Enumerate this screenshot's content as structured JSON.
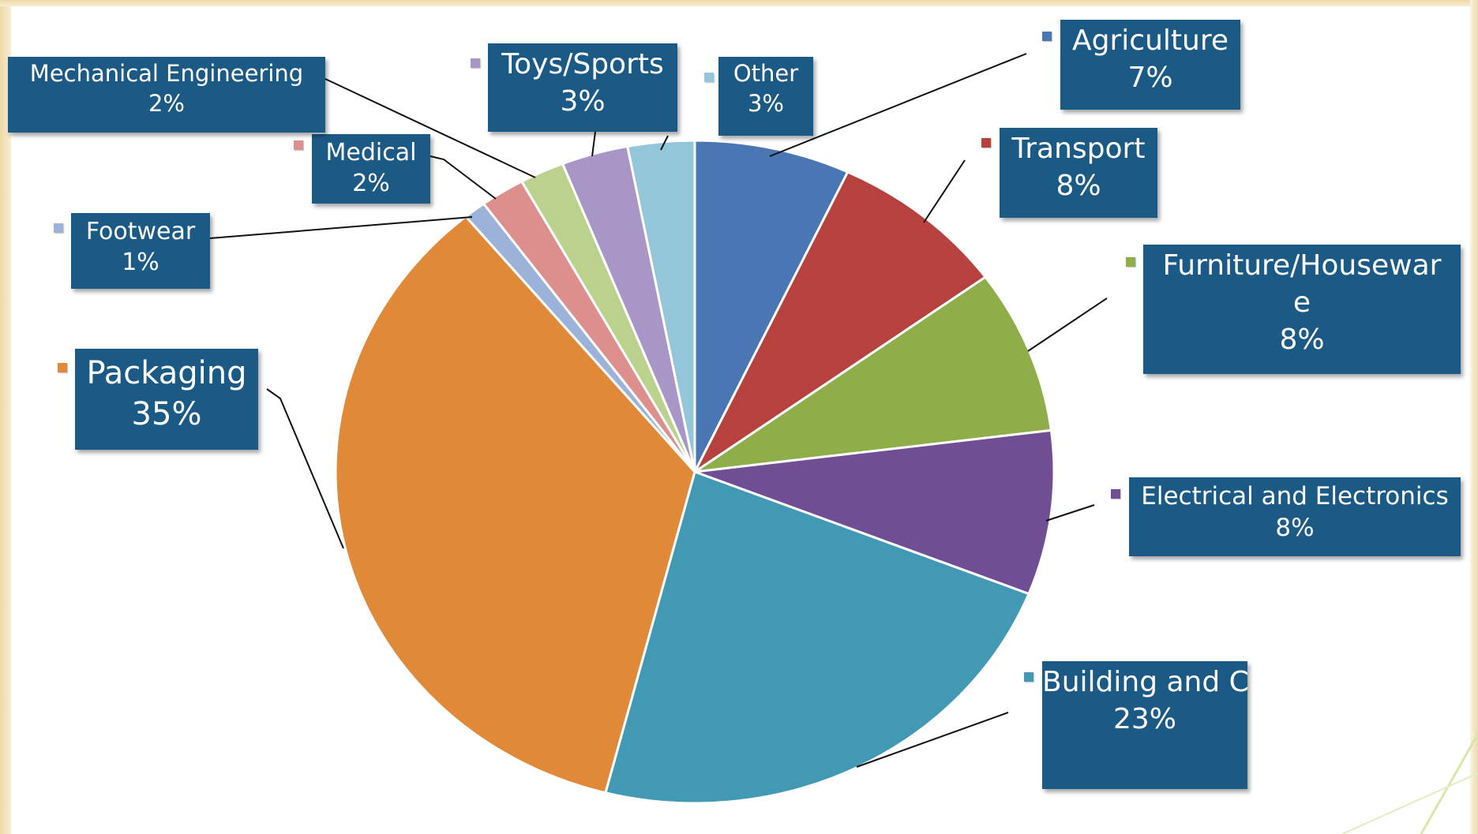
{
  "chart_data": {
    "type": "pie",
    "title": "",
    "legend": "none",
    "slices": [
      {
        "label": "Agriculture",
        "value": 7,
        "display": "7%",
        "color": "#4a76b3"
      },
      {
        "label": "Transport",
        "value": 8,
        "display": "8%",
        "color": "#b7413f"
      },
      {
        "label": "Furniture/Housewar\ne",
        "value": 8,
        "display": "8%",
        "color": "#8fae4a"
      },
      {
        "label": "Electrical and Electronics",
        "value": 8,
        "display": "8%",
        "color": "#6f4e93"
      },
      {
        "label": "Building and Construction",
        "value": 23,
        "display": "23%",
        "color": "#4299b4"
      },
      {
        "label": "Packaging",
        "value": 35,
        "display": "35%",
        "color": "#e08a39"
      },
      {
        "label": "Footwear",
        "value": 1,
        "display": "1%",
        "color": "#9db2d8"
      },
      {
        "label": "Medical",
        "value": 2,
        "display": "2%",
        "color": "#dc8f8d"
      },
      {
        "label": "Mechanical Engineering",
        "value": 2,
        "display": "2%",
        "color": "#bbd18e"
      },
      {
        "label": "Toys/Sports",
        "value": 3,
        "display": "3%",
        "color": "#a897c6"
      },
      {
        "label": "Other",
        "value": 3,
        "display": "3%",
        "color": "#93c6d9"
      }
    ]
  }
}
